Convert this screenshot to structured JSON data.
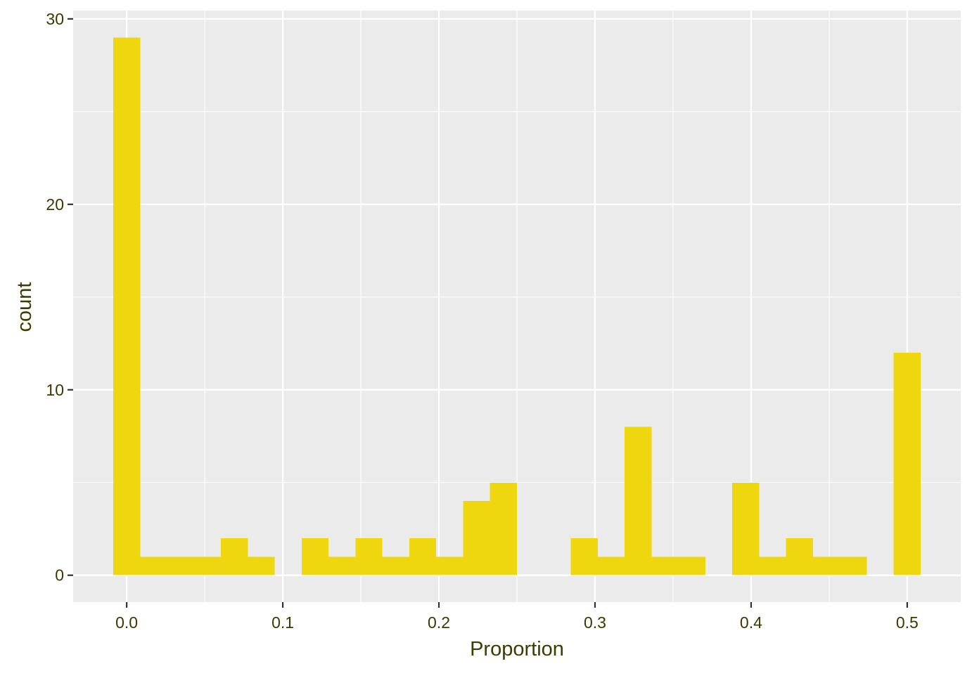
{
  "chart_data": {
    "type": "bar",
    "subtype": "histogram",
    "title": "",
    "xlabel": "Proportion",
    "ylabel": "count",
    "xlim": [
      -0.0343,
      0.5343
    ],
    "ylim": [
      -1.45,
      30.45
    ],
    "x_ticks": [
      0.0,
      0.1,
      0.2,
      0.3,
      0.4,
      0.5
    ],
    "x_tick_labels": [
      "0.0",
      "0.1",
      "0.2",
      "0.3",
      "0.4",
      "0.5"
    ],
    "y_ticks": [
      0,
      10,
      20,
      30
    ],
    "y_tick_labels": [
      "0",
      "10",
      "20",
      "30"
    ],
    "bin_width": 0.017241,
    "bin_centers": [
      0.0,
      0.017241,
      0.034483,
      0.051724,
      0.068966,
      0.086207,
      0.103448,
      0.12069,
      0.137931,
      0.155172,
      0.172414,
      0.189655,
      0.206897,
      0.224138,
      0.241379,
      0.258621,
      0.275862,
      0.293103,
      0.310345,
      0.327586,
      0.344828,
      0.362069,
      0.37931,
      0.396552,
      0.413793,
      0.431034,
      0.448276,
      0.465517,
      0.482759,
      0.5
    ],
    "values": [
      29,
      1,
      1,
      1,
      2,
      1,
      0,
      2,
      1,
      2,
      1,
      2,
      1,
      4,
      5,
      0,
      0,
      2,
      1,
      8,
      1,
      1,
      0,
      5,
      1,
      2,
      1,
      1,
      0,
      12
    ],
    "bar_color": "#EFD710",
    "panel_background": "#EBEBEB",
    "grid_color": "#FFFFFF",
    "grid": true,
    "legend": "none",
    "text_color": "#3D3D00",
    "tick_label_color": "#3A3A00"
  }
}
